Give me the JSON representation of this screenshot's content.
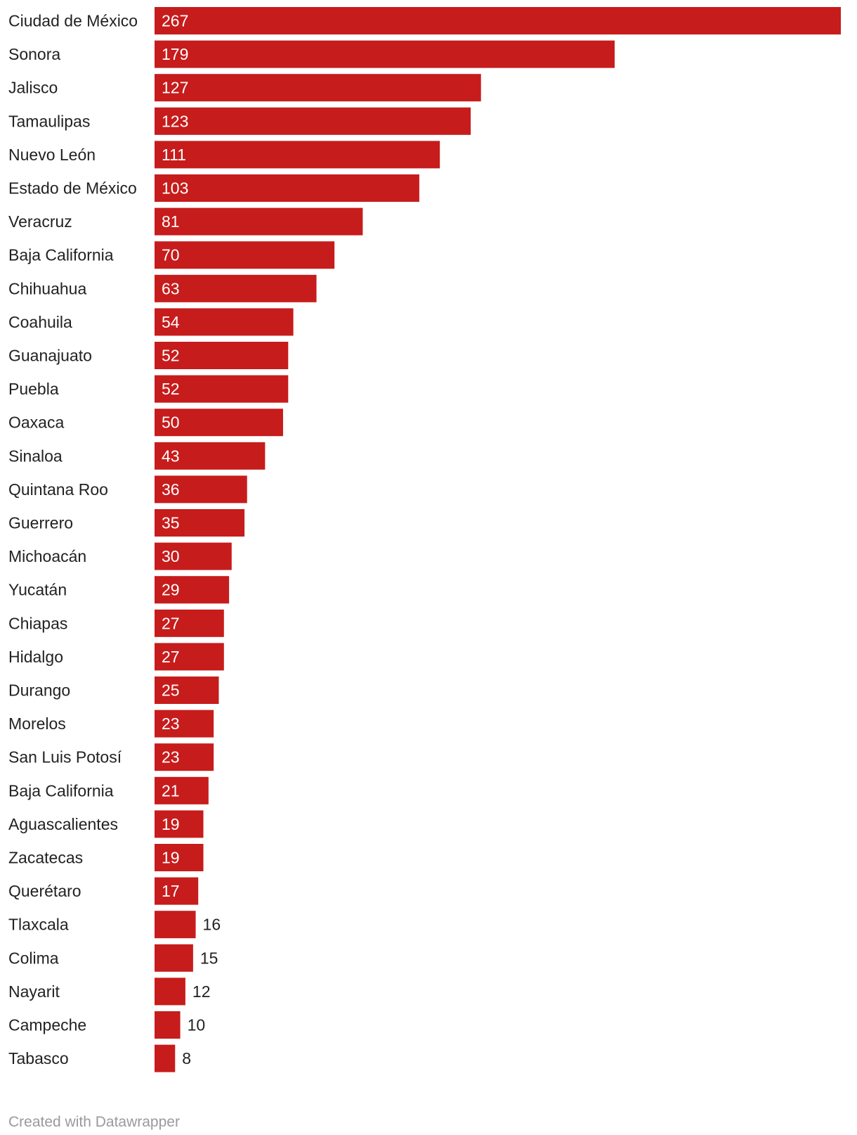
{
  "chart_data": {
    "type": "bar",
    "orientation": "horizontal",
    "categories": [
      "Ciudad de México",
      "Sonora",
      "Jalisco",
      "Tamaulipas",
      "Nuevo León",
      "Estado de México",
      "Veracruz",
      "Baja California",
      "Chihuahua",
      "Coahuila",
      "Guanajuato",
      "Puebla",
      "Oaxaca",
      "Sinaloa",
      "Quintana Roo",
      "Guerrero",
      "Michoacán",
      "Yucatán",
      "Chiapas",
      "Hidalgo",
      "Durango",
      "Morelos",
      "San Luis Potosí",
      "Baja California",
      "Aguascalientes",
      "Zacatecas",
      "Querétaro",
      "Tlaxcala",
      "Colima",
      "Nayarit",
      "Campeche",
      "Tabasco"
    ],
    "values": [
      267,
      179,
      127,
      123,
      111,
      103,
      81,
      70,
      63,
      54,
      52,
      52,
      50,
      43,
      36,
      35,
      30,
      29,
      27,
      27,
      25,
      23,
      23,
      21,
      19,
      19,
      17,
      16,
      15,
      12,
      10,
      8
    ],
    "xlim": [
      0,
      267
    ],
    "grid": false,
    "bar_color": "#c71c1c",
    "value_label_inside_color": "#ffffff",
    "value_label_outside_color": "#222222"
  },
  "footer": {
    "credit": "Created with Datawrapper"
  }
}
